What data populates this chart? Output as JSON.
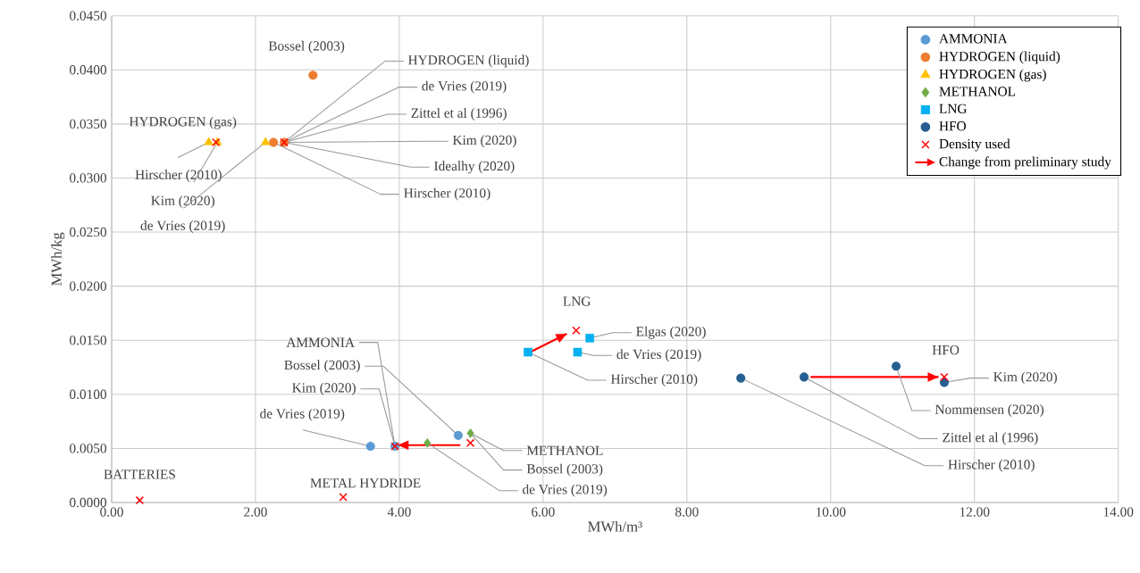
{
  "chart_data": {
    "type": "scatter",
    "xlabel": "MWh/m³",
    "ylabel": "MWh/kg",
    "xlim": [
      0,
      14
    ],
    "ylim": [
      0,
      0.045
    ],
    "xticks": [
      {
        "value": 0,
        "label": "0.00"
      },
      {
        "value": 2,
        "label": "2.00"
      },
      {
        "value": 4,
        "label": "4.00"
      },
      {
        "value": 6,
        "label": "6.00"
      },
      {
        "value": 8,
        "label": "8.00"
      },
      {
        "value": 10,
        "label": "10.00"
      },
      {
        "value": 12,
        "label": "12.00"
      },
      {
        "value": 14,
        "label": "14.00"
      }
    ],
    "yticks": [
      {
        "value": 0,
        "label": "0.0000"
      },
      {
        "value": 0.005,
        "label": "0.0050"
      },
      {
        "value": 0.01,
        "label": "0.0100"
      },
      {
        "value": 0.015,
        "label": "0.0150"
      },
      {
        "value": 0.02,
        "label": "0.0200"
      },
      {
        "value": 0.025,
        "label": "0.0250"
      },
      {
        "value": 0.03,
        "label": "0.0300"
      },
      {
        "value": 0.035,
        "label": "0.0350"
      },
      {
        "value": 0.04,
        "label": "0.0400"
      },
      {
        "value": 0.045,
        "label": "0.0450"
      }
    ],
    "grid": true,
    "legend": "top right",
    "series": [
      {
        "name": "AMMONIA",
        "color": "#5b9bd5",
        "marker": "circle",
        "x": [
          3.6,
          3.94,
          4.82
        ],
        "values": [
          0.0052,
          0.0052,
          0.0062
        ]
      },
      {
        "name": "HYDROGEN (liquid)",
        "color": "#ed7d31",
        "marker": "circle",
        "x": [
          2.8,
          2.25,
          2.4
        ],
        "values": [
          0.0395,
          0.0333,
          0.0333
        ]
      },
      {
        "name": "HYDROGEN (gas)",
        "color": "#ffc000",
        "marker": "triangle",
        "x": [
          1.35,
          1.47,
          2.14
        ],
        "values": [
          0.0333,
          0.0333,
          0.0333
        ]
      },
      {
        "name": "METHANOL",
        "color": "#70ad47",
        "marker": "diamond",
        "x": [
          4.39,
          4.99
        ],
        "values": [
          0.0055,
          0.0064
        ]
      },
      {
        "name": "LNG",
        "color": "#00b0f0",
        "marker": "square",
        "x": [
          5.79,
          6.48,
          6.65
        ],
        "values": [
          0.0139,
          0.0139,
          0.0152
        ]
      },
      {
        "name": "HFO",
        "color": "#255e91",
        "marker": "circle",
        "x": [
          8.75,
          9.63,
          10.91,
          11.58
        ],
        "values": [
          0.0115,
          0.0116,
          0.0126,
          0.0111
        ]
      },
      {
        "name": "Density used",
        "color": "#ff0000",
        "marker": "cross",
        "x": [
          0.39,
          3.22,
          1.45,
          2.4,
          3.94,
          4.99,
          6.46,
          11.58
        ],
        "values": [
          0.0002,
          0.0005,
          0.0333,
          0.0333,
          0.0052,
          0.0055,
          0.0159,
          0.0116
        ]
      },
      {
        "name": "Change from preliminary study",
        "type": "line",
        "color": "#ff0000",
        "marker": "none",
        "x": [
          4.85,
          3.98,
          null,
          5.82,
          6.33,
          null,
          9.72,
          11.5
        ],
        "values": [
          0.0053,
          0.0053,
          null,
          0.0139,
          0.0156,
          null,
          0.0116,
          0.0116
        ]
      }
    ],
    "annotations": [
      {
        "text": "Bossel (2003)",
        "x": 2.8,
        "y": 0.0395
      },
      {
        "text": "HYDROGEN (liquid)",
        "x": 2.4,
        "y": 0.0333
      },
      {
        "text": "de Vries (2019)",
        "x": 2.4,
        "y": 0.0333
      },
      {
        "text": "Zittel et al (1996)",
        "x": 2.4,
        "y": 0.0333
      },
      {
        "text": "Kim (2020)",
        "x": 2.4,
        "y": 0.0333
      },
      {
        "text": "Idealhy (2020)",
        "x": 2.4,
        "y": 0.0333
      },
      {
        "text": "Hirscher (2010)",
        "x": 2.25,
        "y": 0.0333
      },
      {
        "text": "HYDROGEN (gas)",
        "x": 1.35,
        "y": 0.0333
      },
      {
        "text": "Hirscher (2010)",
        "x": 1.35,
        "y": 0.0333
      },
      {
        "text": "Kim (2020)",
        "x": 1.47,
        "y": 0.0333
      },
      {
        "text": "de Vries (2019)",
        "x": 2.14,
        "y": 0.0333
      },
      {
        "text": "LNG",
        "x": 6.46,
        "y": 0.0159
      },
      {
        "text": "Elgas  (2020)",
        "x": 6.65,
        "y": 0.0152
      },
      {
        "text": "de Vries (2019)",
        "x": 6.48,
        "y": 0.0139
      },
      {
        "text": "Hirscher (2010)",
        "x": 5.79,
        "y": 0.0139
      },
      {
        "text": "HFO",
        "x": 11.58,
        "y": 0.0116
      },
      {
        "text": "Kim (2020)",
        "x": 11.58,
        "y": 0.0111
      },
      {
        "text": "Nommensen (2020)",
        "x": 10.91,
        "y": 0.0126
      },
      {
        "text": "Zittel et al (1996)",
        "x": 9.63,
        "y": 0.0116
      },
      {
        "text": "Hirscher (2010)",
        "x": 8.75,
        "y": 0.0115
      },
      {
        "text": "AMMONIA",
        "x": 3.94,
        "y": 0.0052
      },
      {
        "text": "Bossel (2003)",
        "x": 4.82,
        "y": 0.0062
      },
      {
        "text": "Kim (2020)",
        "x": 3.94,
        "y": 0.0052
      },
      {
        "text": "de Vries (2019)",
        "x": 3.6,
        "y": 0.0052
      },
      {
        "text": "METHANOL",
        "x": 4.99,
        "y": 0.0064
      },
      {
        "text": "Bossel (2003)",
        "x": 4.99,
        "y": 0.0064
      },
      {
        "text": "de Vries (2019)",
        "x": 4.39,
        "y": 0.0055
      },
      {
        "text": "BATTERIES",
        "x": 0.39,
        "y": 0.0002
      },
      {
        "text": "METAL HYDRIDE",
        "x": 3.22,
        "y": 0.0005
      }
    ]
  }
}
